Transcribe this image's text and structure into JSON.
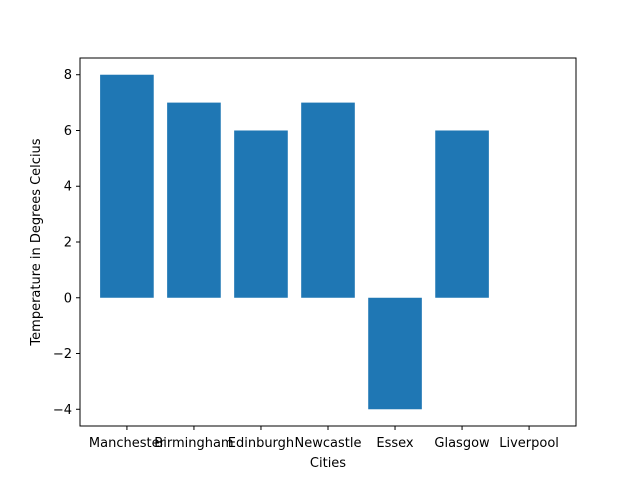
{
  "chart_data": {
    "type": "bar",
    "title": "",
    "xlabel": "Cities",
    "ylabel": "Temperature in Degrees Celcius",
    "categories": [
      "Manchester",
      "Birmingham",
      "Edinburgh",
      "Newcastle",
      "Essex",
      "Glasgow",
      "Liverpool"
    ],
    "values": [
      8,
      7,
      6,
      7,
      -4,
      6,
      0
    ],
    "ylim": [
      -4.6,
      8.6
    ],
    "yticks": [
      -4,
      -2,
      0,
      2,
      4,
      6,
      8
    ],
    "ytick_labels": [
      "−4",
      "−2",
      "0",
      "2",
      "4",
      "6",
      "8"
    ],
    "grid": false,
    "bar_color": "#1f77b4"
  }
}
